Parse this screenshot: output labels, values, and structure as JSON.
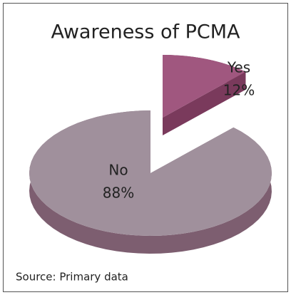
{
  "chart_data": {
    "type": "pie",
    "title": "Awareness of PCMA",
    "categories": [
      "Yes",
      "No"
    ],
    "values": [
      12,
      88
    ],
    "value_labels": [
      "12%",
      "88%"
    ],
    "colors": [
      "#a0577f",
      "#a0909c"
    ],
    "side_colors": [
      "#7a3a5c",
      "#7d5e70"
    ],
    "explode": [
      true,
      false
    ],
    "source": "Source: Primary data"
  }
}
